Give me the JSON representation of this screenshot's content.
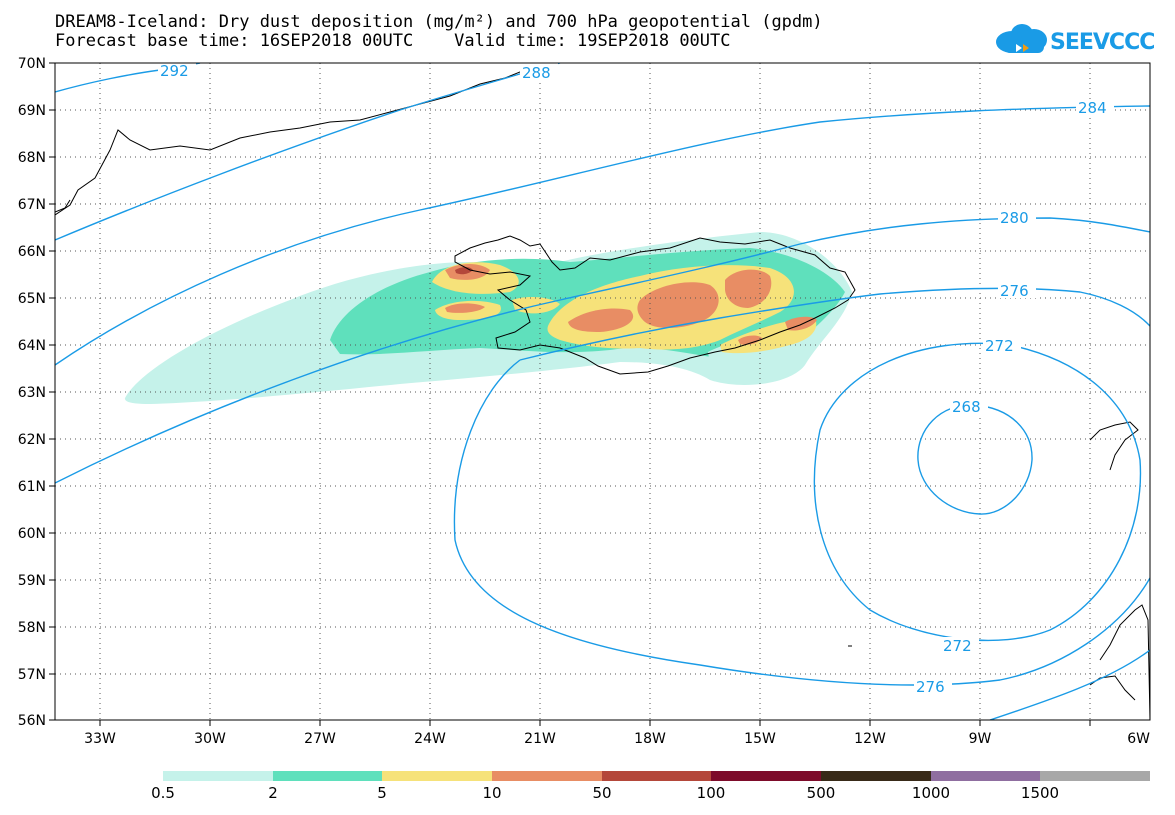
{
  "title_line1": "DREAM8-Iceland: Dry dust deposition (mg/m²) and 700 hPa geopotential (gpdm)",
  "title_line2": "Forecast base time: 16SEP2018 00UTC    Valid time: 19SEP2018 00UTC",
  "logo_text": "SEEVCCC",
  "lat_labels": [
    "70N",
    "69N",
    "68N",
    "67N",
    "66N",
    "65N",
    "64N",
    "63N",
    "62N",
    "61N",
    "60N",
    "59N",
    "58N",
    "57N",
    "56N"
  ],
  "lon_labels": [
    "33W",
    "30W",
    "27W",
    "24W",
    "21W",
    "18W",
    "15W",
    "12W",
    "9W",
    "6W"
  ],
  "contour_labels": [
    "292",
    "288",
    "284",
    "280",
    "276",
    "272",
    "268",
    "272",
    "276"
  ],
  "legend": {
    "labels": [
      "0.5",
      "2",
      "5",
      "10",
      "50",
      "100",
      "500",
      "1000",
      "1500"
    ],
    "colors": [
      "#c5f2ea",
      "#5fe0bc",
      "#f6e27a",
      "#e88d64",
      "#b4473a",
      "#7d0b2a",
      "#382a18",
      "#8f6ea0",
      "#a8a8a8"
    ]
  },
  "colors": {
    "contour": "#1a9be6",
    "coast": "#000000",
    "grid": "#555555"
  }
}
